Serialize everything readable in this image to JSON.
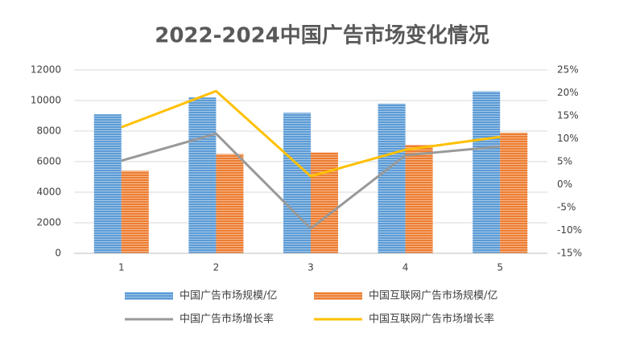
{
  "chart_data": {
    "type": "combo",
    "title": "2022-2024中国广告市场变化情况",
    "categories": [
      "1",
      "2",
      "3",
      "4",
      "5"
    ],
    "series": [
      {
        "name": "中国广告市场规模/亿",
        "type": "bar",
        "color": "#5b9bd5",
        "values": [
          9100,
          10200,
          9200,
          9800,
          10600
        ]
      },
      {
        "name": "中国互联网广告市场规模/亿",
        "type": "bar",
        "color": "#ed7d31",
        "values": [
          5400,
          6500,
          6600,
          7100,
          7900
        ]
      },
      {
        "name": "中国广告市场增长率",
        "type": "line",
        "axis": "y2",
        "color": "#999999",
        "values": [
          5.2,
          11.1,
          -9.6,
          6.4,
          8.3
        ]
      },
      {
        "name": "中国互联网广告市场增长率",
        "type": "line",
        "axis": "y2",
        "color": "#ffc000",
        "values": [
          12.5,
          20.4,
          1.8,
          7.6,
          10.4
        ]
      }
    ],
    "ylim": [
      0,
      12000
    ],
    "yticks": [
      0,
      2000,
      4000,
      6000,
      8000,
      10000,
      12000
    ],
    "y2lim": [
      -15,
      25
    ],
    "y2ticks": [
      {
        "value": -15,
        "label": "-15%"
      },
      {
        "value": -10,
        "label": "-10%"
      },
      {
        "value": -5,
        "label": "-5%"
      },
      {
        "value": 0,
        "label": "0%"
      },
      {
        "value": 5,
        "label": "5%"
      },
      {
        "value": 10,
        "label": "10%"
      },
      {
        "value": 15,
        "label": "15%"
      },
      {
        "value": 20,
        "label": "20%"
      },
      {
        "value": 25,
        "label": "25%"
      }
    ],
    "grid": true
  }
}
